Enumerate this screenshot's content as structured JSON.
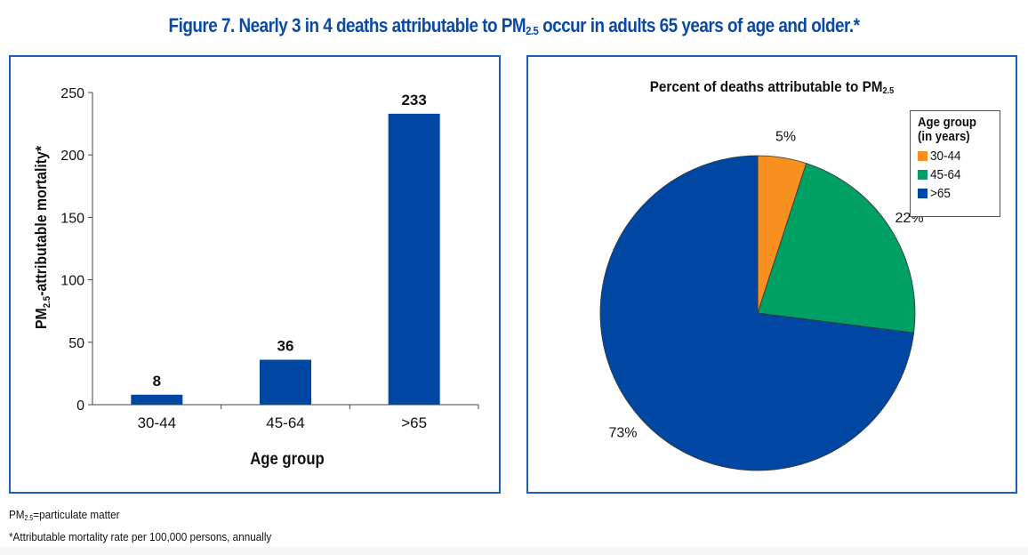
{
  "figure": {
    "title_pre": "Figure 7. Nearly 3 in 4 deaths attributable to PM",
    "title_sub": "2.5",
    "title_post": " occur in adults 65 years of age and older.*",
    "title_color": "#0a4aa4"
  },
  "footnotes": {
    "pm_pre": "PM",
    "pm_sub": "2.5",
    "pm_post": "=particulate matter",
    "asterisk": "*Attributable mortality rate per 100,000 persons, annually"
  },
  "chart_data": [
    {
      "type": "bar",
      "title": "",
      "categories": [
        "30-44",
        "45-64",
        ">65"
      ],
      "values": [
        8,
        36,
        233
      ],
      "data_labels": [
        "8",
        "36",
        "233"
      ],
      "xlabel": "Age group",
      "ylabel_pre": "PM",
      "ylabel_sub": "2.5",
      "ylabel_post": "-attributable mortality*",
      "ylim": [
        0,
        250
      ],
      "yticks": [
        0,
        50,
        100,
        150,
        200,
        250
      ],
      "grid": false,
      "bar_color": "#0047a3"
    },
    {
      "type": "pie",
      "title_pre": "Percent of deaths attributable to PM",
      "title_sub": "2.5",
      "legend_title_line1": "Age group",
      "legend_title_line2": "(in years)",
      "legend_position": "top-right",
      "categories": [
        "30-44",
        "45-64",
        ">65"
      ],
      "values": [
        5,
        22,
        73
      ],
      "labels": [
        "5%",
        "22%",
        "73%"
      ],
      "colors": [
        "#f7901e",
        "#00a065",
        "#0047a3"
      ],
      "start_angle": "12 o'clock",
      "direction": "clockwise"
    }
  ]
}
